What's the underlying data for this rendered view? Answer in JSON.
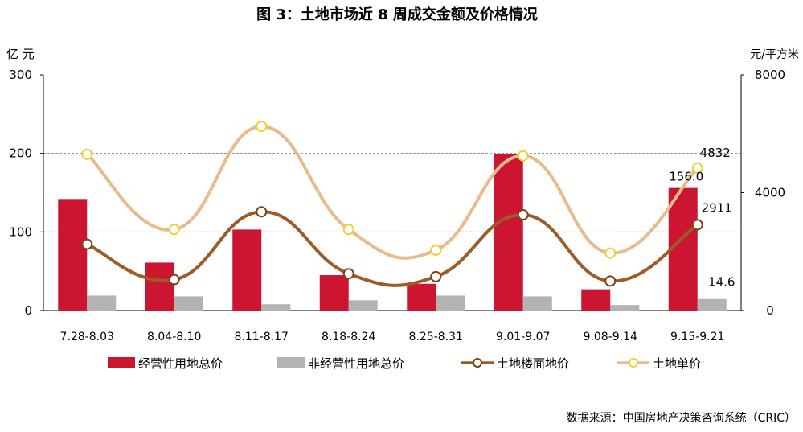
{
  "title": "图 3：土地市场近 8 周成交金额及价格情况",
  "left_unit": "亿 元",
  "right_unit": "元/平方米",
  "source": "数据来源：中国房地产决策咨询系统（CRIC）",
  "colors": {
    "commercial": "#cc1530",
    "noncommercial": "#b3b3b3",
    "floor_price": "#9c5b27",
    "unit_price": "#e9bb8c",
    "marker_fill": "#ffffff",
    "marker_ring_floor": "#7a4419",
    "marker_ring_unit": "#f0d030",
    "grid": "#888888",
    "axis": "#000000"
  },
  "chart_data": {
    "type": "bar",
    "categories": [
      "7.28-8.03",
      "8.04-8.10",
      "8.11-8.17",
      "8.18-8.24",
      "8.25-8.31",
      "9.01-9.07",
      "9.08-9.14",
      "9.15-9.21"
    ],
    "y_left": {
      "ticks": [
        "0",
        "100",
        "200",
        "300"
      ],
      "ylim": [
        0,
        300
      ]
    },
    "y_right": {
      "ticks": [
        "0",
        "4000",
        "8000"
      ],
      "ylim": [
        0,
        8000
      ]
    },
    "gridlines": [
      100,
      200
    ],
    "legend_position": "bottom",
    "series": [
      {
        "name": "经营性用地总价",
        "kind": "bar",
        "axis": "left",
        "values": [
          142,
          61,
          103,
          45,
          34,
          199,
          27,
          156.0
        ]
      },
      {
        "name": "非经营性用地总价",
        "kind": "bar",
        "axis": "left",
        "values": [
          19,
          18,
          8,
          13,
          19,
          18,
          7,
          14.6
        ]
      },
      {
        "name": "土地楼面地价",
        "kind": "line",
        "axis": "right",
        "values": [
          2250,
          1050,
          3350,
          1250,
          1150,
          3250,
          1000,
          2911
        ]
      },
      {
        "name": "土地单价",
        "kind": "line",
        "axis": "right",
        "values": [
          5300,
          2750,
          6250,
          2750,
          2050,
          5250,
          1950,
          4832
        ]
      }
    ],
    "data_labels": [
      {
        "series": 0,
        "index": 7,
        "text": "156.0"
      },
      {
        "series": 1,
        "index": 7,
        "text": "14.6"
      },
      {
        "series": 2,
        "index": 7,
        "text": "2911"
      },
      {
        "series": 3,
        "index": 7,
        "text": "4832"
      }
    ]
  }
}
